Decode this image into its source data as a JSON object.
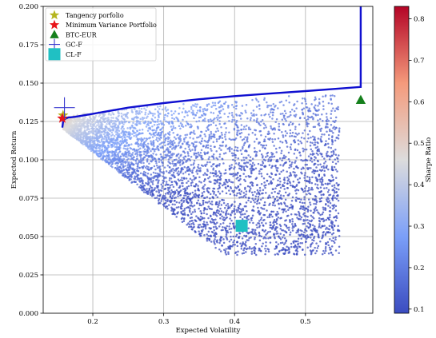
{
  "chart_data": {
    "type": "scatter",
    "title": "",
    "xlabel": "Expected Volatility",
    "ylabel": "Expected Return",
    "xlim": [
      0.13,
      0.595
    ],
    "ylim": [
      0.0,
      0.2
    ],
    "x_ticks": [
      {
        "value": 0.2,
        "label": "0.2"
      },
      {
        "value": 0.3,
        "label": "0.3"
      },
      {
        "value": 0.4,
        "label": "0.4"
      },
      {
        "value": 0.5,
        "label": "0.5"
      }
    ],
    "y_ticks": [
      {
        "value": 0.0,
        "label": "0.000"
      },
      {
        "value": 0.025,
        "label": "0.025"
      },
      {
        "value": 0.05,
        "label": "0.050"
      },
      {
        "value": 0.075,
        "label": "0.075"
      },
      {
        "value": 0.1,
        "label": "0.100"
      },
      {
        "value": 0.125,
        "label": "0.125"
      },
      {
        "value": 0.15,
        "label": "0.150"
      },
      {
        "value": 0.175,
        "label": "0.175"
      },
      {
        "value": 0.2,
        "label": "0.200"
      }
    ],
    "grid": true,
    "legend_position": "top-left",
    "legend": [
      {
        "label": "Tangency porfolio",
        "marker": "star",
        "color": "#b5b520"
      },
      {
        "label": "Minimum Variance Portfolio",
        "marker": "star",
        "color": "#e8151b"
      },
      {
        "label": "BTC-EUR",
        "marker": "triangle",
        "color": "#15801c"
      },
      {
        "label": "GC-F",
        "marker": "plus",
        "color": "#3a3acf"
      },
      {
        "label": "CL-F",
        "marker": "square",
        "color": "#20c0c3"
      }
    ],
    "colorbar": {
      "label": "Sharpe Ratio",
      "range": [
        0.09,
        0.83
      ],
      "ticks": [
        {
          "value": 0.1,
          "label": "0.1"
        },
        {
          "value": 0.2,
          "label": "0.2"
        },
        {
          "value": 0.3,
          "label": "0.3"
        },
        {
          "value": 0.4,
          "label": "0.4"
        },
        {
          "value": 0.5,
          "label": "0.5"
        },
        {
          "value": 0.6,
          "label": "0.6"
        },
        {
          "value": 0.7,
          "label": "0.7"
        },
        {
          "value": 0.8,
          "label": "0.8"
        }
      ],
      "colormap": "coolwarm"
    },
    "efficient_frontier": {
      "color": "#1010d0",
      "x": [
        0.157,
        0.158,
        0.16,
        0.165,
        0.175,
        0.2,
        0.25,
        0.3,
        0.35,
        0.4,
        0.45,
        0.5,
        0.55,
        0.578,
        0.578
      ],
      "y": [
        0.121,
        0.1245,
        0.1265,
        0.1275,
        0.128,
        0.13,
        0.134,
        0.137,
        0.1395,
        0.1415,
        0.1432,
        0.1448,
        0.1465,
        0.1475,
        0.2
      ]
    },
    "assets": [
      {
        "name": "Tangency porfolio",
        "x": 0.158,
        "y": 0.129
      },
      {
        "name": "Minimum Variance Portfolio",
        "x": 0.157,
        "y": 0.127
      },
      {
        "name": "BTC-EUR",
        "x": 0.578,
        "y": 0.139
      },
      {
        "name": "GC-F",
        "x": 0.16,
        "y": 0.134
      },
      {
        "name": "CL-F",
        "x": 0.41,
        "y": 0.057
      }
    ],
    "simulated_portfolios": {
      "count": 5000,
      "color_by": "Sharpe Ratio",
      "note_range_x": [
        0.155,
        0.55
      ],
      "note_range_y": [
        0.038,
        0.145
      ]
    }
  }
}
